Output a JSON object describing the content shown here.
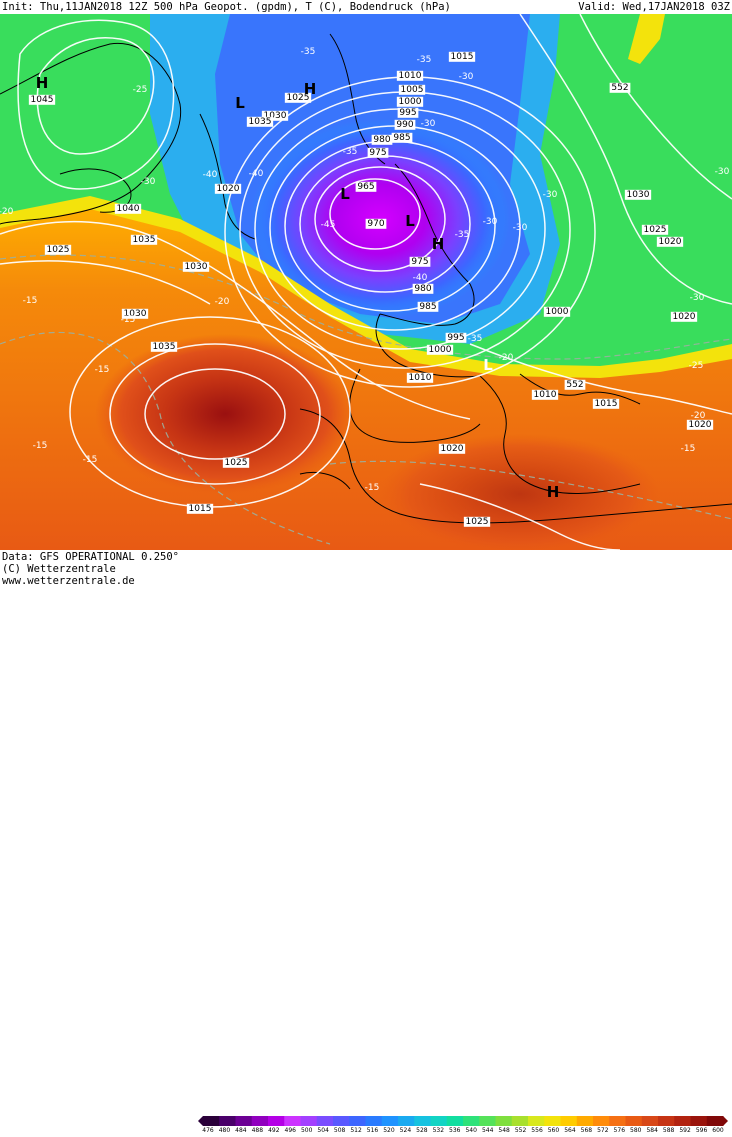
{
  "header": {
    "init": "Init: Thu,11JAN2018 12Z",
    "product": "500 hPa Geopot. (gpdm), T (C), Bodendruck (hPa)",
    "valid": "Valid: Wed,17JAN2018 03Z"
  },
  "footer": {
    "data_line": "Data: GFS OPERATIONAL 0.250°",
    "copyright": "(C) Wetterzentrale",
    "url": "www.wetterzentrale.de"
  },
  "legend": {
    "ticks": [
      "476",
      "480",
      "484",
      "488",
      "492",
      "496",
      "500",
      "504",
      "508",
      "512",
      "516",
      "520",
      "524",
      "528",
      "532",
      "536",
      "540",
      "544",
      "548",
      "552",
      "556",
      "560",
      "564",
      "568",
      "572",
      "576",
      "580",
      "584",
      "588",
      "592",
      "596",
      "600"
    ],
    "colors": [
      "#2a0039",
      "#4a006a",
      "#6c0094",
      "#9100bf",
      "#b400e6",
      "#cc33ff",
      "#a340ff",
      "#7a4dff",
      "#5a58ff",
      "#3d66ff",
      "#2a7bff",
      "#1f93ff",
      "#1aaaf0",
      "#16c2e0",
      "#12d4c4",
      "#12dea0",
      "#2ee27a",
      "#55e25a",
      "#7fdf3e",
      "#a8e02e",
      "#d8e81e",
      "#f3e30c",
      "#ffcc00",
      "#ffaa00",
      "#ff8c0a",
      "#f57014",
      "#e85a14",
      "#d84818",
      "#c63414",
      "#b22310",
      "#9a140c",
      "#800808"
    ]
  },
  "pressure_labels": [
    {
      "text": "1045"
    },
    {
      "text": "1040"
    },
    {
      "text": "1035"
    },
    {
      "text": "1030"
    },
    {
      "text": "1025"
    },
    {
      "text": "1020"
    },
    {
      "text": "1015"
    },
    {
      "text": "1010"
    },
    {
      "text": "1005"
    },
    {
      "text": "1000"
    },
    {
      "text": "995"
    },
    {
      "text": "990"
    },
    {
      "text": "985"
    },
    {
      "text": "980"
    },
    {
      "text": "975"
    },
    {
      "text": "970"
    },
    {
      "text": "965"
    },
    {
      "text": "1030"
    },
    {
      "text": "1035"
    },
    {
      "text": "1035"
    },
    {
      "text": "1030"
    },
    {
      "text": "1025"
    },
    {
      "text": "1020"
    },
    {
      "text": "1025"
    },
    {
      "text": "1020"
    },
    {
      "text": "1015"
    },
    {
      "text": "1010"
    },
    {
      "text": "1010"
    },
    {
      "text": "1000"
    },
    {
      "text": "1000"
    },
    {
      "text": "995"
    },
    {
      "text": "985"
    },
    {
      "text": "980"
    },
    {
      "text": "975"
    },
    {
      "text": "1030"
    },
    {
      "text": "1025"
    },
    {
      "text": "1020"
    },
    {
      "text": "1020"
    },
    {
      "text": "1025"
    },
    {
      "text": "1015"
    }
  ],
  "temp_labels": [
    {
      "text": "-35"
    },
    {
      "text": "-35"
    },
    {
      "text": "-30"
    },
    {
      "text": "-30"
    },
    {
      "text": "-25"
    },
    {
      "text": "-20"
    },
    {
      "text": "-20"
    },
    {
      "text": "-30"
    },
    {
      "text": "-40"
    },
    {
      "text": "-40"
    },
    {
      "text": "-35"
    },
    {
      "text": "-45"
    },
    {
      "text": "-40"
    },
    {
      "text": "-35"
    },
    {
      "text": "-30"
    },
    {
      "text": "-30"
    },
    {
      "text": "-30"
    },
    {
      "text": "-15"
    },
    {
      "text": "-15"
    },
    {
      "text": "-15"
    },
    {
      "text": "-15"
    },
    {
      "text": "-15"
    },
    {
      "text": "-15"
    },
    {
      "text": "-20"
    },
    {
      "text": "-25"
    },
    {
      "text": "-15"
    },
    {
      "text": "-20"
    },
    {
      "text": "-30"
    },
    {
      "text": "-30"
    },
    {
      "text": "-35"
    }
  ],
  "geopot_labels": [
    {
      "text": "552"
    },
    {
      "text": "552"
    }
  ],
  "centers": [
    {
      "type": "H",
      "color": "#000000"
    },
    {
      "type": "L",
      "color": "#000000"
    },
    {
      "type": "H",
      "color": "#000000"
    },
    {
      "type": "L",
      "color": "#000000"
    },
    {
      "type": "L",
      "color": "#000000"
    },
    {
      "type": "H",
      "color": "#000000"
    },
    {
      "type": "L",
      "color": "#ffffff"
    },
    {
      "type": "H",
      "color": "#000000"
    }
  ]
}
